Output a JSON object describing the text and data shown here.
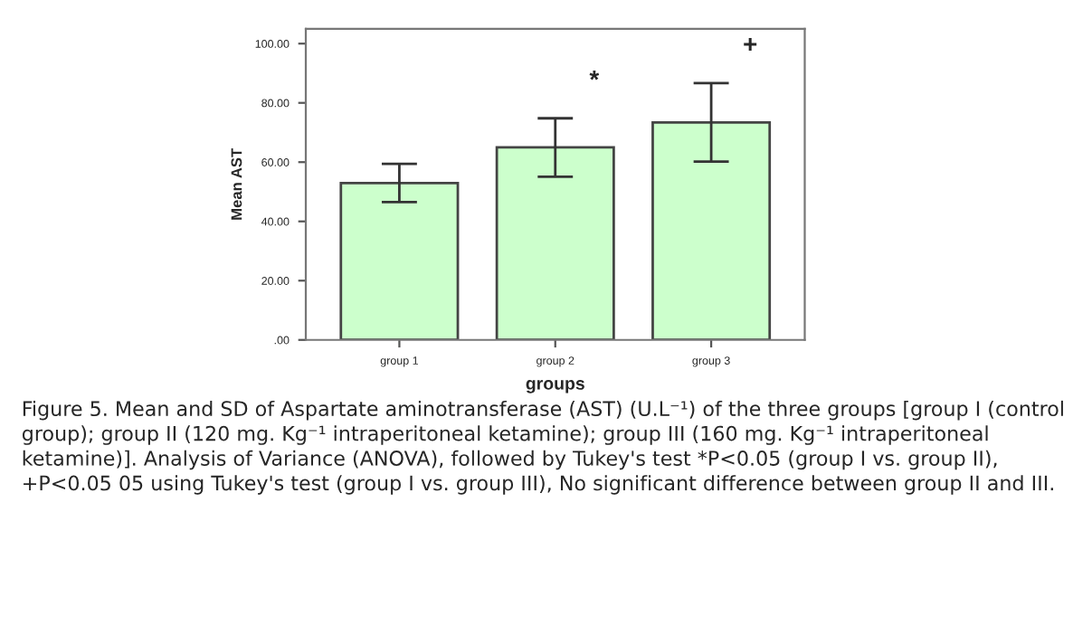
{
  "chart_data": {
    "type": "bar",
    "xlabel": "groups",
    "ylabel": "Mean AST",
    "categories": [
      "group 1",
      "group 2",
      "group 3"
    ],
    "values": [
      52.9,
      65.0,
      73.4
    ],
    "errors": [
      [
        46.5,
        59.4
      ],
      [
        55.1,
        74.8
      ],
      [
        60.2,
        86.7
      ]
    ],
    "color": "#ccffcc",
    "ylim": [
      0,
      105
    ],
    "yticks": [
      {
        "value": 0,
        "label": ".00"
      },
      {
        "value": 20,
        "label": "20.00"
      },
      {
        "value": 40,
        "label": "40.00"
      },
      {
        "value": 60,
        "label": "60.00"
      },
      {
        "value": 80,
        "label": "80.00"
      },
      {
        "value": 100,
        "label": "100.00"
      }
    ],
    "grid": false,
    "annotations": [
      "*",
      "+",
      "Figure 5. Mean and SD of Aspartate aminotransferase (AST) (U.L⁻¹) of the three groups [group I (control group); group II (120 mg. Kg⁻¹ intraperitoneal ketamine); group III (160 mg. Kg⁻¹ intraperitoneal ketamine)]. Analysis of Variance (ANOVA), followed by Tukey's test *P<0.05 (group I vs. group II), +P<0.05 05 using Tukey's test (group I vs. group III), No significant difference between group II and III."
    ]
  }
}
